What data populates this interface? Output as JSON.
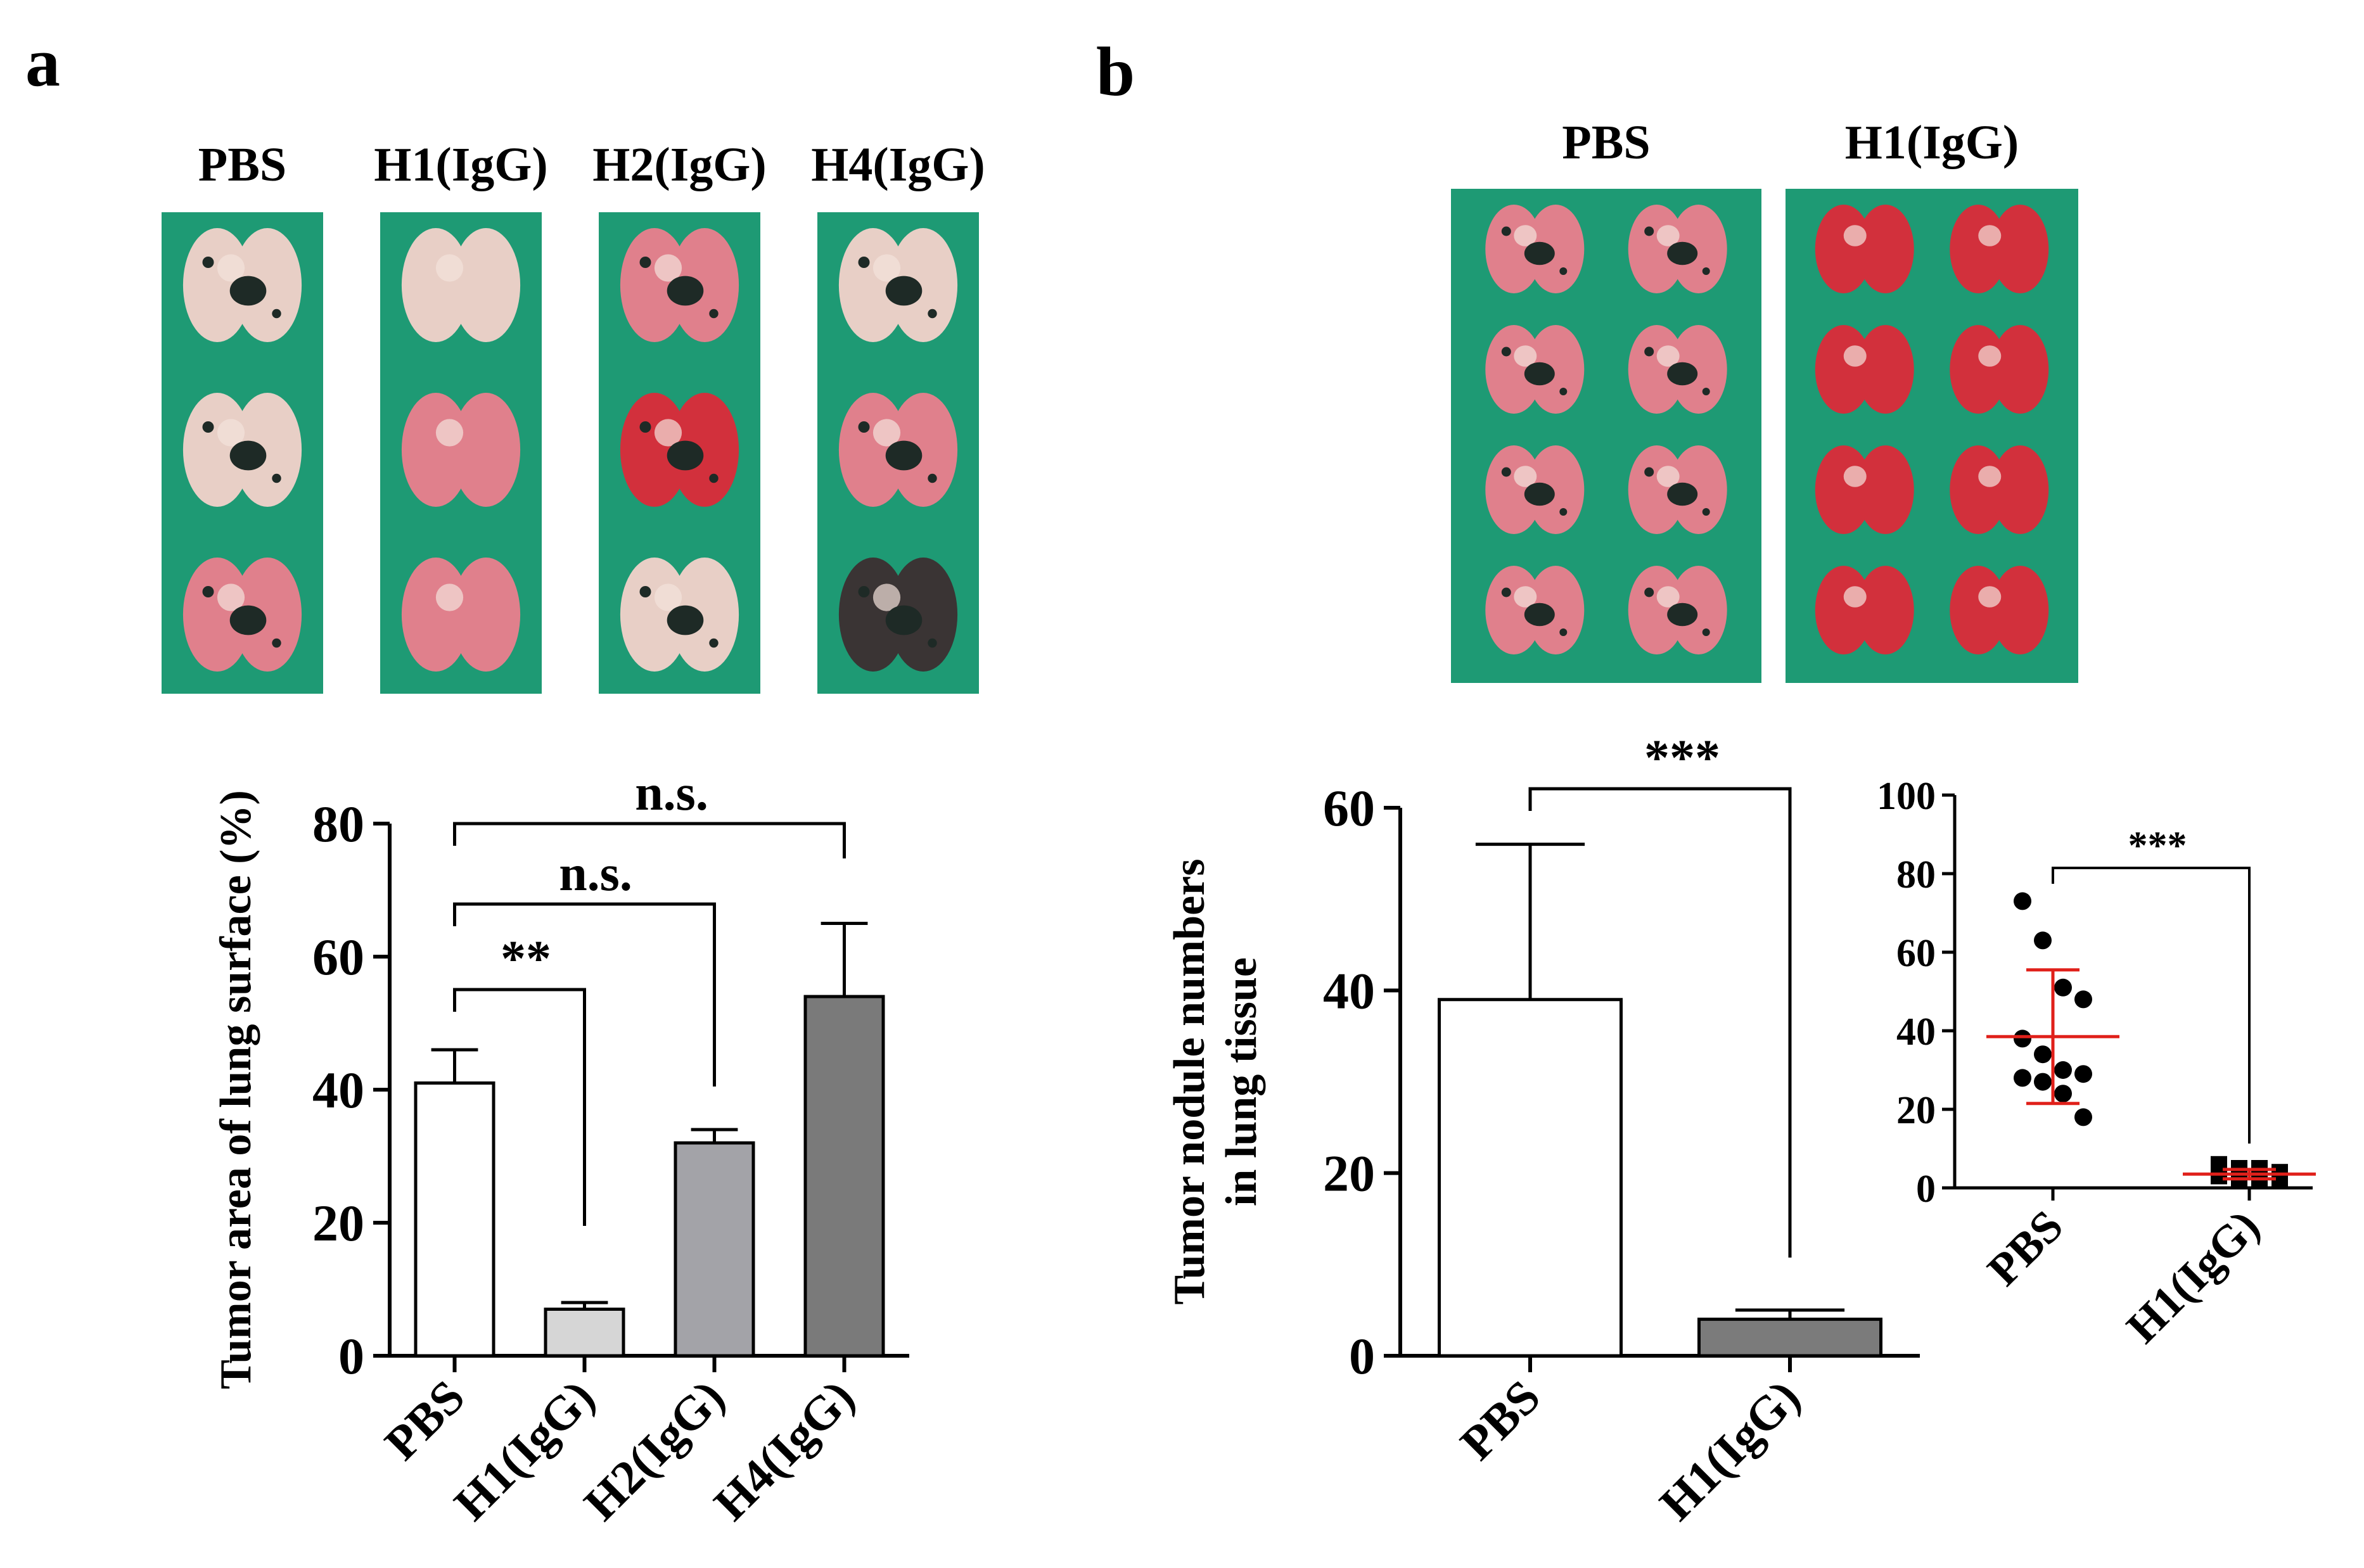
{
  "panels": {
    "a": "a",
    "b": "b"
  },
  "colors": {
    "green": "#1e9a74",
    "greenDark": "#15805f",
    "pbs_bar": "#ffffff",
    "h1_bar": "#d6d6d6",
    "h2_bar": "#a3a3a8",
    "h4_bar": "#7a7a7a",
    "h1b_bar": "#7b7b7b",
    "red": "#e0201a"
  },
  "photos": {
    "a": [
      {
        "label": "PBS",
        "lungs": [
          [
            "pale",
            "dark"
          ],
          [
            "pale",
            "dark"
          ],
          [
            "pink",
            "dark"
          ]
        ]
      },
      {
        "label": "H1(IgG)",
        "lungs": [
          [
            "pale",
            "none"
          ],
          [
            "pink",
            "none"
          ],
          [
            "pink",
            "none"
          ]
        ]
      },
      {
        "label": "H2(IgG)",
        "lungs": [
          [
            "pink",
            "dark"
          ],
          [
            "red",
            "dark"
          ],
          [
            "pale",
            "dark"
          ]
        ]
      },
      {
        "label": "H4(IgG)",
        "lungs": [
          [
            "pale",
            "dark"
          ],
          [
            "pink",
            "dark"
          ],
          [
            "dark",
            "dark"
          ]
        ]
      }
    ],
    "b": [
      {
        "label": "PBS"
      },
      {
        "label": "H1(IgG)"
      }
    ]
  },
  "chart_data": [
    {
      "id": "a",
      "type": "bar",
      "ylabel": "Tumor area of lung surface (%)",
      "categories": [
        "PBS",
        "H1(IgG)",
        "H2(IgG)",
        "H4(IgG)"
      ],
      "values": [
        41,
        7,
        32,
        54
      ],
      "errors": [
        5,
        1,
        2,
        11
      ],
      "ylim": [
        0,
        80
      ],
      "yticks": [
        0,
        20,
        40,
        60,
        80
      ],
      "brackets": [
        {
          "from": 0,
          "to": 1,
          "label": "**"
        },
        {
          "from": 0,
          "to": 2,
          "label": "n.s."
        },
        {
          "from": 0,
          "to": 3,
          "label": "n.s."
        }
      ]
    },
    {
      "id": "b_bar",
      "type": "bar",
      "ylabel": "Tumor nodule numbers",
      "ylabel2": "in lung tissue",
      "categories": [
        "PBS",
        "H1(IgG)"
      ],
      "values": [
        39,
        4
      ],
      "errors": [
        17,
        1
      ],
      "ylim": [
        0,
        60
      ],
      "yticks": [
        0,
        20,
        40,
        60
      ],
      "brackets": [
        {
          "from": 0,
          "to": 1,
          "label": "***"
        }
      ]
    },
    {
      "id": "b_scatter",
      "type": "scatter",
      "categories": [
        "PBS",
        "H1(IgG)"
      ],
      "points": [
        [
          73,
          63,
          51,
          48,
          38,
          34,
          30,
          29,
          28,
          27,
          24,
          18
        ],
        [
          6,
          5,
          5,
          4,
          4,
          4,
          3,
          3,
          3,
          2,
          2,
          2
        ]
      ],
      "mean": [
        38.5,
        3.5
      ],
      "sd": [
        17,
        1.2
      ],
      "ylim": [
        0,
        100
      ],
      "yticks": [
        0,
        20,
        40,
        60,
        80,
        100
      ],
      "brackets": [
        {
          "from": 0,
          "to": 1,
          "label": "***"
        }
      ]
    }
  ]
}
